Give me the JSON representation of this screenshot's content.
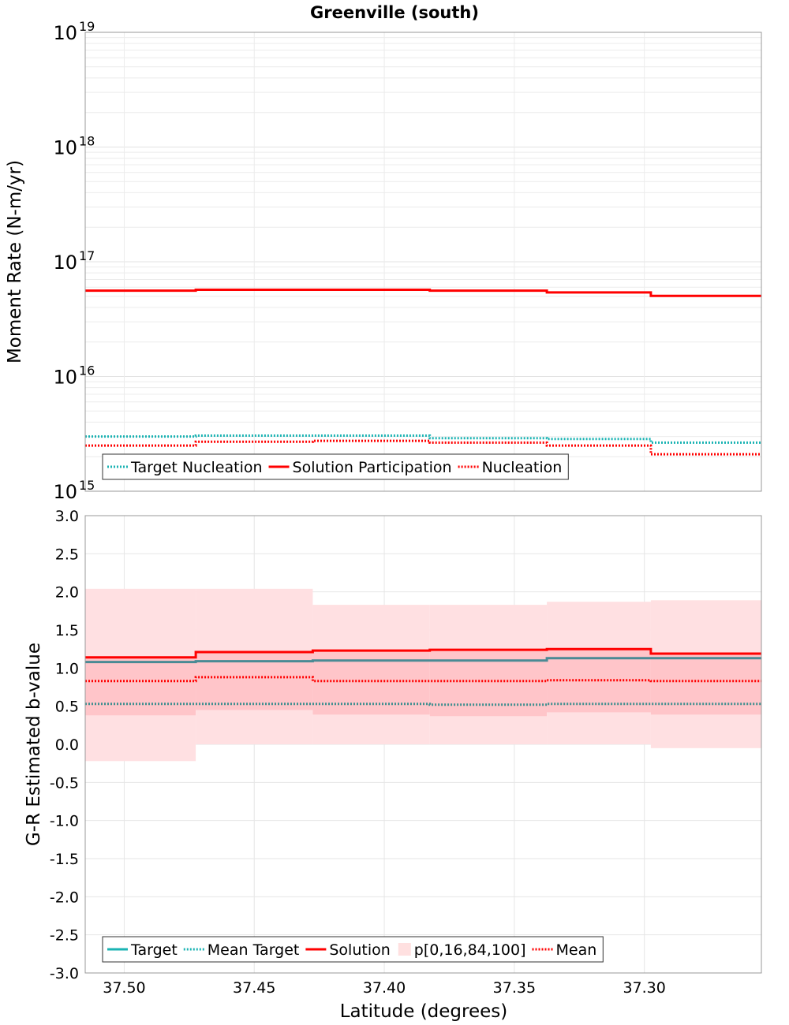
{
  "title": "Greenville (south)",
  "chart_data": [
    {
      "type": "line",
      "subtype": "step",
      "ylabel": "Moment Rate (N-m/yr)",
      "yscale": "log",
      "ylim": [
        1000000000000000.0,
        1e+19
      ],
      "y_ticks": [
        {
          "base": "10",
          "exp": "15",
          "value": 1000000000000000.0
        },
        {
          "base": "10",
          "exp": "16",
          "value": 1e+16
        },
        {
          "base": "10",
          "exp": "17",
          "value": 1e+17
        },
        {
          "base": "10",
          "exp": "18",
          "value": 1e+18
        },
        {
          "base": "10",
          "exp": "19",
          "value": 1e+19
        }
      ],
      "x_edges": [
        37.515,
        37.4725,
        37.4275,
        37.3825,
        37.3375,
        37.2975,
        37.255
      ],
      "legend": {
        "location": "lower-left"
      },
      "series": [
        {
          "name": "Target Nucleation",
          "style": "dotted",
          "color": "#1ab3b3",
          "values": [
            3000000000000000.0,
            3050000000000000.0,
            3050000000000000.0,
            2900000000000000.0,
            2850000000000000.0,
            2650000000000000.0
          ]
        },
        {
          "name": "Solution Participation",
          "style": "solid",
          "color": "#ff0000",
          "values": [
            5.6e+16,
            5.7e+16,
            5.7e+16,
            5.6e+16,
            5.4e+16,
            5.05e+16
          ]
        },
        {
          "name": "Nucleation",
          "style": "dotted",
          "color": "#ff0000",
          "values": [
            2500000000000000.0,
            2700000000000000.0,
            2750000000000000.0,
            2650000000000000.0,
            2500000000000000.0,
            2100000000000000.0
          ]
        }
      ]
    },
    {
      "type": "line",
      "subtype": "step",
      "xlabel": "Latitude (degrees)",
      "ylabel": "G-R Estimated b-value",
      "xlim": [
        37.515,
        37.255
      ],
      "ylim": [
        -3.0,
        3.0
      ],
      "x_ticks": [
        "37.50",
        "37.45",
        "37.40",
        "37.35",
        "37.30"
      ],
      "x_tick_values": [
        37.5,
        37.45,
        37.4,
        37.35,
        37.3
      ],
      "y_ticks": [
        "3.0",
        "2.5",
        "2.0",
        "1.5",
        "1.0",
        "0.5",
        "0.0",
        "-0.5",
        "-1.0",
        "-1.5",
        "-2.0",
        "-2.5",
        "-3.0"
      ],
      "y_tick_values": [
        3.0,
        2.5,
        2.0,
        1.5,
        1.0,
        0.5,
        0.0,
        -0.5,
        -1.0,
        -1.5,
        -2.0,
        -2.5,
        -3.0
      ],
      "x_edges": [
        37.515,
        37.4725,
        37.4275,
        37.3825,
        37.3375,
        37.2975,
        37.255
      ],
      "legend": {
        "location": "lower-left"
      },
      "bands": {
        "name": "p[0,16,84,100]",
        "p0": [
          -0.22,
          0.0,
          0.0,
          0.0,
          0.0,
          -0.05
        ],
        "p100": [
          2.04,
          2.04,
          1.83,
          1.83,
          1.87,
          1.89
        ],
        "p16": [
          0.38,
          0.45,
          0.39,
          0.37,
          0.42,
          0.39
        ],
        "p84": [
          1.15,
          1.22,
          1.24,
          1.25,
          1.26,
          1.2
        ]
      },
      "series": [
        {
          "name": "Target",
          "style": "solid",
          "color": "#1ab3b3",
          "values": [
            1.08,
            1.09,
            1.1,
            1.1,
            1.13,
            1.13
          ]
        },
        {
          "name": "Mean Target",
          "style": "dotted",
          "color": "#1ab3b3",
          "values": [
            0.53,
            0.53,
            0.53,
            0.52,
            0.53,
            0.53
          ]
        },
        {
          "name": "Solution",
          "style": "solid",
          "color": "#ff0000",
          "values": [
            1.14,
            1.21,
            1.23,
            1.24,
            1.25,
            1.19
          ]
        },
        {
          "name": "Mean",
          "style": "dotted",
          "color": "#ff0000",
          "values": [
            0.83,
            0.88,
            0.83,
            0.83,
            0.84,
            0.83
          ]
        }
      ]
    }
  ]
}
